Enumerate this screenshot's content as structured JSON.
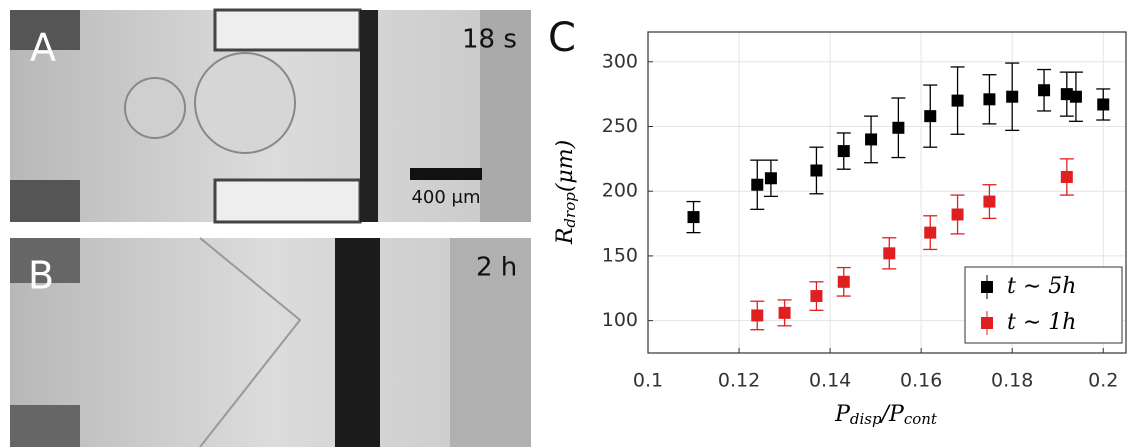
{
  "figure": {
    "panel_a": {
      "label": "A",
      "time": "18 s",
      "scale_bar": "400 μm"
    },
    "panel_b": {
      "label": "B",
      "time": "2 h"
    }
  },
  "chart_data": {
    "type": "scatter",
    "panel_label": "C",
    "xlabel": {
      "symbol1": "P",
      "sub1": "disp",
      "slash": "/",
      "symbol2": "P",
      "sub2": "cont"
    },
    "ylabel": {
      "symbol": "R",
      "sub": "drop",
      "unit": "(μm)"
    },
    "xlim": [
      0.1,
      0.205
    ],
    "xticks": [
      0.1,
      0.12,
      0.14,
      0.16,
      0.18,
      0.2
    ],
    "ylim": [
      75,
      323
    ],
    "yticks": [
      100,
      150,
      200,
      250,
      300
    ],
    "grid": true,
    "legend": "lower right",
    "series": [
      {
        "name": "t ∼ 5h",
        "color": "#000000",
        "x": [
          0.11,
          0.124,
          0.127,
          0.137,
          0.143,
          0.149,
          0.155,
          0.162,
          0.168,
          0.175,
          0.18,
          0.187,
          0.192,
          0.194,
          0.2
        ],
        "values": [
          180,
          205,
          210,
          216,
          231,
          240,
          249,
          258,
          270,
          271,
          273,
          278,
          275,
          273,
          267
        ],
        "errors": [
          12,
          19,
          14,
          18,
          14,
          18,
          23,
          24,
          26,
          19,
          26,
          16,
          17,
          19,
          12
        ]
      },
      {
        "name": "t ∼ 1h",
        "color": "#e02020",
        "x": [
          0.124,
          0.13,
          0.137,
          0.143,
          0.153,
          0.162,
          0.168,
          0.175,
          0.192
        ],
        "values": [
          104,
          106,
          119,
          130,
          152,
          168,
          182,
          192,
          211
        ],
        "errors": [
          11,
          10,
          11,
          11,
          12,
          13,
          15,
          13,
          14
        ]
      }
    ]
  }
}
